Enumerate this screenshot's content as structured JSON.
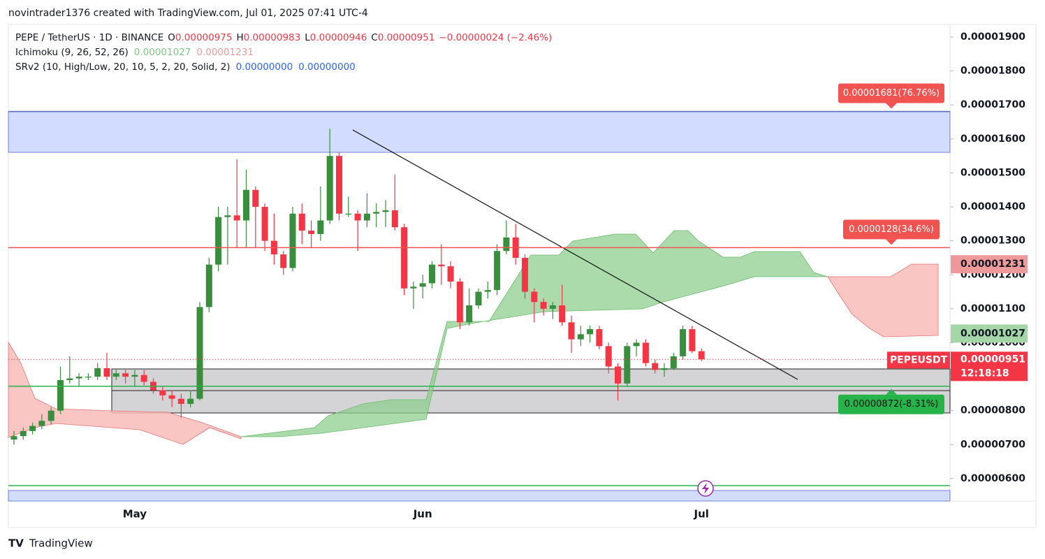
{
  "attribution": "novintrader1376 created with TradingView.com, Jul 01, 2025 07:41 UTC-4",
  "legend": {
    "symbol": "PEPE / TetherUS · 1D · BINANCE",
    "o_key": "O",
    "o": "0.00000975",
    "h_key": "H",
    "h": "0.00000983",
    "l_key": "L",
    "l": "0.00000946",
    "c_key": "C",
    "c": "0.00000951",
    "change": "−0.00000024 (−2.46%)",
    "ichimoku": "Ichimoku (9, 26, 52, 26)",
    "ichimoku_a": "0.00001027",
    "ichimoku_b": "0.00001231",
    "srv2": "SRv2 (10, High/Low, 20, 10, 5, 2, 20, Solid, 2)",
    "srv2_a": "0.00000000",
    "srv2_b": "0.00000000"
  },
  "chart_data": {
    "type": "candlestick",
    "categories": [
      null,
      null,
      null,
      null,
      null,
      null,
      null,
      null,
      null,
      null,
      null,
      null,
      null,
      "May",
      null,
      null,
      null,
      null,
      null,
      null,
      null,
      null,
      null,
      null,
      null,
      null,
      null,
      null,
      null,
      null,
      null,
      null,
      null,
      null,
      null,
      null,
      null,
      null,
      null,
      null,
      null,
      null,
      null,
      null,
      "Jun",
      null,
      null,
      null,
      null,
      null,
      null,
      null,
      null,
      null,
      null,
      null,
      null,
      null,
      null,
      null,
      null,
      null,
      null,
      null,
      null,
      null,
      null,
      null,
      null,
      null,
      null,
      null,
      null,
      null,
      "Jul"
    ],
    "open": [
      7.15e-06,
      7.25e-06,
      7.4e-06,
      7.55e-06,
      7.7e-06,
      8e-06,
      8.9e-06,
      8.95e-06,
      9e-06,
      9e-06,
      9.25e-06,
      9e-06,
      9.1e-06,
      9e-06,
      9.05e-06,
      8.85e-06,
      8.6e-06,
      8.45e-06,
      8.35e-06,
      8.2e-06,
      8.35e-06,
      1.105e-05,
      1.23e-05,
      1.37e-05,
      1.375e-05,
      1.36e-05,
      1.45e-05,
      1.4e-05,
      1.3e-05,
      1.26e-05,
      1.22e-05,
      1.38e-05,
      1.33e-05,
      1.32e-05,
      1.36e-05,
      1.55e-05,
      1.38e-05,
      1.38e-05,
      1.36e-05,
      1.38e-05,
      1.385e-05,
      1.39e-05,
      1.34e-05,
      1.16e-05,
      1.165e-05,
      1.175e-05,
      1.23e-05,
      1.225e-05,
      1.18e-05,
      1.06e-05,
      1.11e-05,
      1.15e-05,
      1.155e-05,
      1.27e-05,
      1.31e-05,
      1.25e-05,
      1.15e-05,
      1.12e-05,
      1.1e-05,
      1.11e-05,
      1.06e-05,
      1.01e-05,
      1.025e-05,
      1.04e-05,
      9.9e-06,
      9.3e-06,
      8.8e-06,
      9.9e-06,
      1e-05,
      9.4e-06,
      9.2e-06,
      9.25e-06,
      9.6e-06,
      1.04e-05,
      9.75e-06
    ],
    "high": [
      7.4e-06,
      7.5e-06,
      7.65e-06,
      7.9e-06,
      8.1e-06,
      9.3e-06,
      9.6e-06,
      9.1e-06,
      9.1e-06,
      9.4e-06,
      9.7e-06,
      9.2e-06,
      9.2e-06,
      9.2e-06,
      9.2e-06,
      8.95e-06,
      8.7e-06,
      8.6e-06,
      8.5e-06,
      8.6e-06,
      1.12e-05,
      1.25e-05,
      1.4e-05,
      1.4e-05,
      1.54e-05,
      1.51e-05,
      1.46e-05,
      1.41e-05,
      1.38e-05,
      1.27e-05,
      1.4e-05,
      1.41e-05,
      1.36e-05,
      1.46e-05,
      1.63e-05,
      1.56e-05,
      1.43e-05,
      1.39e-05,
      1.44e-05,
      1.41e-05,
      1.42e-05,
      1.495e-05,
      1.35e-05,
      1.18e-05,
      1.2e-05,
      1.24e-05,
      1.29e-05,
      1.24e-05,
      1.19e-05,
      1.16e-05,
      1.16e-05,
      1.18e-05,
      1.29e-05,
      1.36e-05,
      1.35e-05,
      1.26e-05,
      1.16e-05,
      1.13e-05,
      1.12e-05,
      1.17e-05,
      1.08e-05,
      1.05e-05,
      1.05e-05,
      1.05e-05,
      1e-05,
      9.4e-06,
      1e-05,
      1.01e-05,
      1.01e-05,
      9.5e-06,
      9.4e-06,
      9.7e-06,
      1.05e-05,
      1.05e-05,
      9.83e-06
    ],
    "low": [
      7e-06,
      7.15e-06,
      7.3e-06,
      7.45e-06,
      7.6e-06,
      7.9e-06,
      8.8e-06,
      8.7e-06,
      8.9e-06,
      8.9e-06,
      8.9e-06,
      8.9e-06,
      8.8e-06,
      8.7e-06,
      8.75e-06,
      8.5e-06,
      8.3e-06,
      8.1e-06,
      7.8e-06,
      8.1e-06,
      8.3e-06,
      1.09e-05,
      1.21e-05,
      1.23e-05,
      1.28e-05,
      1.28e-05,
      1.28e-05,
      1.27e-05,
      1.23e-05,
      1.2e-05,
      1.21e-05,
      1.29e-05,
      1.28e-05,
      1.3e-05,
      1.35e-05,
      1.36e-05,
      1.37e-05,
      1.27e-05,
      1.34e-05,
      1.34e-05,
      1.34e-05,
      1.33e-05,
      1.14e-05,
      1.1e-05,
      1.13e-05,
      1.16e-05,
      1.17e-05,
      1.16e-05,
      1.04e-05,
      1.05e-05,
      1.1e-05,
      1.13e-05,
      1.14e-05,
      1.26e-05,
      1.23e-05,
      1.13e-05,
      1.06e-05,
      1.08e-05,
      1.07e-05,
      1.05e-05,
      9.7e-06,
      9.9e-06,
      1e-05,
      9.8e-06,
      9.1e-06,
      8.3e-06,
      8.7e-06,
      9.6e-06,
      9.3e-06,
      9.1e-06,
      9e-06,
      9.2e-06,
      9.5e-06,
      9.7e-06,
      9.46e-06
    ],
    "close": [
      7.25e-06,
      7.4e-06,
      7.55e-06,
      7.7e-06,
      8e-06,
      8.9e-06,
      8.95e-06,
      9e-06,
      9e-06,
      9.25e-06,
      9e-06,
      9.1e-06,
      9e-06,
      9.05e-06,
      8.85e-06,
      8.6e-06,
      8.45e-06,
      8.35e-06,
      8.2e-06,
      8.35e-06,
      1.105e-05,
      1.23e-05,
      1.37e-05,
      1.375e-05,
      1.36e-05,
      1.45e-05,
      1.4e-05,
      1.3e-05,
      1.26e-05,
      1.22e-05,
      1.38e-05,
      1.33e-05,
      1.32e-05,
      1.36e-05,
      1.55e-05,
      1.38e-05,
      1.38e-05,
      1.36e-05,
      1.38e-05,
      1.385e-05,
      1.39e-05,
      1.34e-05,
      1.16e-05,
      1.165e-05,
      1.175e-05,
      1.23e-05,
      1.225e-05,
      1.18e-05,
      1.06e-05,
      1.11e-05,
      1.15e-05,
      1.155e-05,
      1.27e-05,
      1.31e-05,
      1.25e-05,
      1.15e-05,
      1.12e-05,
      1.1e-05,
      1.11e-05,
      1.06e-05,
      1.01e-05,
      1.025e-05,
      1.04e-05,
      9.9e-06,
      9.3e-06,
      8.8e-06,
      9.9e-06,
      1e-05,
      9.4e-06,
      9.2e-06,
      9.25e-06,
      9.6e-06,
      1.04e-05,
      9.75e-06,
      9.51e-06
    ],
    "up_color": "#388e3c",
    "down_color": "#f23645",
    "ylim": [
      5.34e-06,
      1.937e-05
    ],
    "yticks": [
      {
        "value": 1.9e-05,
        "label": "0.00001900"
      },
      {
        "value": 1.8e-05,
        "label": "0.00001800"
      },
      {
        "value": 1.7e-05,
        "label": "0.00001700"
      },
      {
        "value": 1.6e-05,
        "label": "0.00001600"
      },
      {
        "value": 1.5e-05,
        "label": "0.00001500"
      },
      {
        "value": 1.4e-05,
        "label": "0.00001400"
      },
      {
        "value": 1.3e-05,
        "label": "0.00001300"
      },
      {
        "value": 1.2e-05,
        "label": "0.00001200"
      },
      {
        "value": 1.1e-05,
        "label": "0.00001100"
      },
      {
        "value": 1e-05,
        "label": "0.00001000"
      },
      {
        "value": 9e-06,
        "label": "0.00000900"
      },
      {
        "value": 8e-06,
        "label": "0.00000800"
      },
      {
        "value": 7e-06,
        "label": "0.00000700"
      },
      {
        "value": 6e-06,
        "label": "0.00000600"
      }
    ],
    "levels": [
      {
        "value": 1.681e-05,
        "label": "0.00001681(76.76%)",
        "color": "#f05350"
      },
      {
        "value": 1.28e-05,
        "label": "0.0000128(34.6%)",
        "color": "#f05350"
      },
      {
        "value": 8.72e-06,
        "label": "0.00000872(-8.31%)",
        "color": "#26b34a"
      }
    ],
    "price_tags": [
      {
        "value": 1.231e-05,
        "label": "0.00001231",
        "color": "#ef9a9a"
      },
      {
        "value": 1.027e-05,
        "label": "0.00001027",
        "color": "#a5d6a7"
      }
    ],
    "last": {
      "value": 9.51e-06,
      "label": "0.00000951",
      "countdown": "12:18:18",
      "symbol": "PEPEUSDT"
    }
  },
  "footer": "TradingView"
}
